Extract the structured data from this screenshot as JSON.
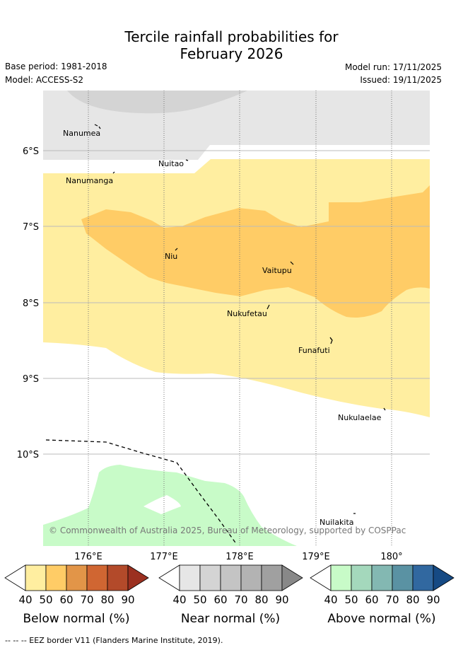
{
  "title_line1": "Tercile rainfall probabilities for",
  "title_line2": "February 2026",
  "base_period": "Base period: 1981-2018",
  "model": "Model: ACCESS-S2",
  "model_run": "Model run: 17/11/2025",
  "issued": "Issued: 19/11/2025",
  "copyright": "© Commonwealth of Australia 2025, Bureau of Meteorology, supported by COSPPac",
  "eez_note": "--  --  -- EEZ border V11 (Flanders Marine Institute, 2019).",
  "lat_labels": [
    "6°S",
    "7°S",
    "8°S",
    "9°S",
    "10°S"
  ],
  "lon_labels": [
    "176°E",
    "177°E",
    "178°E",
    "179°E",
    "180°"
  ],
  "places": [
    "Nanumea",
    "Nuitao",
    "Nanumanga",
    "Niu",
    "Vaitupu",
    "Nukufetau",
    "Funafuti",
    "Nukulaelae",
    "Nuilakita"
  ],
  "colorbars": [
    {
      "title": "Below normal (%)",
      "ticks": [
        "40",
        "50",
        "60",
        "70",
        "80",
        "90"
      ],
      "colors": [
        "#ffeea0",
        "#ffcc66",
        "#e29548",
        "#d06632",
        "#b34a2a",
        "#9b3020"
      ]
    },
    {
      "title": "Near normal (%)",
      "ticks": [
        "40",
        "50",
        "60",
        "70",
        "80",
        "90"
      ],
      "colors": [
        "#e6e6e6",
        "#d4d4d4",
        "#c4c4c4",
        "#b3b3b3",
        "#a0a0a0",
        "#888888"
      ]
    },
    {
      "title": "Above normal (%)",
      "ticks": [
        "40",
        "50",
        "60",
        "70",
        "80",
        "90"
      ],
      "colors": [
        "#c8fbc8",
        "#a4d8bc",
        "#83b8b2",
        "#5a92a3",
        "#3168a0",
        "#164a84"
      ]
    }
  ],
  "map_colors": {
    "near_normal_40": "#e6e6e6",
    "near_normal_50": "#d4d4d4",
    "below_normal_40": "#ffeea0",
    "below_normal_50": "#ffcc66",
    "above_normal_40": "#c8fbc8"
  }
}
